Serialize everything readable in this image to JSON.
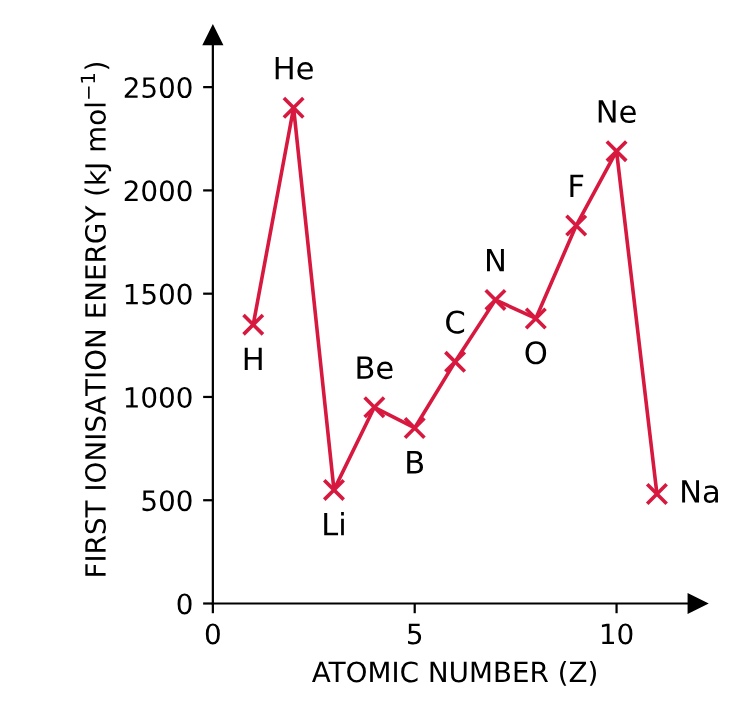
{
  "chart_data": {
    "type": "line",
    "xlabel": "ATOMIC NUMBER (Z)",
    "ylabel": "FIRST IONISATION ENERGY (kJ mol$^{−1}$)",
    "x": [
      1,
      2,
      3,
      4,
      5,
      6,
      7,
      8,
      9,
      10,
      11
    ],
    "series": [
      {
        "color": "#d7193f",
        "values": [
          1350,
          2400,
          550,
          950,
          850,
          1170,
          1470,
          1380,
          1830,
          2190,
          530
        ]
      }
    ],
    "xlim": [
      0,
      12
    ],
    "ylim": [
      0,
      2750
    ],
    "xticks": [
      0,
      5,
      10
    ],
    "yticks": [
      0,
      500,
      1000,
      1500,
      2000,
      2500
    ],
    "grid": false,
    "marker": "cross",
    "line_style": "solid",
    "annotations": [
      {
        "text": "H",
        "x": 1,
        "y": 1350
      },
      {
        "text": "He",
        "x": 2,
        "y": 2400
      },
      {
        "text": "Li",
        "x": 3,
        "y": 550
      },
      {
        "text": "Be",
        "x": 4,
        "y": 950
      },
      {
        "text": "B",
        "x": 5,
        "y": 850
      },
      {
        "text": "C",
        "x": 6,
        "y": 1170
      },
      {
        "text": "N",
        "x": 7,
        "y": 1470
      },
      {
        "text": "O",
        "x": 8,
        "y": 1380
      },
      {
        "text": "F",
        "x": 9,
        "y": 1830
      },
      {
        "text": "Ne",
        "x": 10,
        "y": 2190
      },
      {
        "text": "Na",
        "x": 11,
        "y": 530
      }
    ]
  }
}
